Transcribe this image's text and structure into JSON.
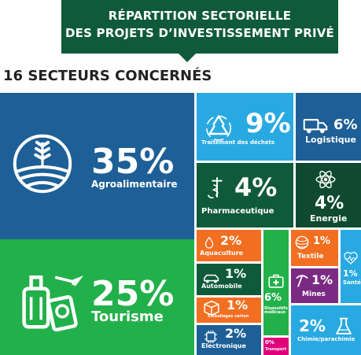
{
  "header": {
    "title_line1": "RÉPARTITION SECTORIELLE",
    "title_line2": "DES PROJETS D’INVESTISSEMENT PRIVÉ",
    "subtitle": "16 SECTEURS CONCERNÉS"
  },
  "chart_data": {
    "type": "treemap",
    "title": "RÉPARTITION SECTORIELLE DES PROJETS D’INVESTISSEMENT PRIVÉ",
    "subtitle": "16 SECTEURS CONCERNÉS",
    "unit": "%",
    "sectors": [
      {
        "key": "agro",
        "name": "Agroalimentaire",
        "label": "35%",
        "value": 35,
        "color": "#1d5f96",
        "icon": "wheat-field-icon"
      },
      {
        "key": "tourisme",
        "name": "Tourisme",
        "label": "25%",
        "value": 25,
        "color": "#22b04a",
        "icon": "luggage-passport-icon"
      },
      {
        "key": "dechets",
        "name": "Traitement des déchets",
        "label": "9%",
        "value": 9,
        "color": "#29a9e1",
        "icon": "recycle-icon"
      },
      {
        "key": "logistique",
        "name": "Logistique",
        "label": "6%",
        "value": 6,
        "color": "#1d5f96",
        "icon": "delivery-truck-icon"
      },
      {
        "key": "pharma",
        "name": "Pharmaceutique",
        "label": "4%",
        "value": 4,
        "color": "#0f5a3a",
        "icon": "pharmacy-icon"
      },
      {
        "key": "energie",
        "name": "Energie",
        "label": "4%",
        "value": 4,
        "color": "#0f4a30",
        "icon": "atom-icon"
      },
      {
        "key": "aquaculture",
        "name": "Aquaculture",
        "label": "2%",
        "value": 2,
        "color": "#f26f21",
        "icon": "droplet-icon"
      },
      {
        "key": "automobile",
        "name": "Automobile",
        "label": "1%",
        "value": 1,
        "color": "#0f5a3a",
        "icon": "car-icon"
      },
      {
        "key": "emballages",
        "name": "Emballages carton",
        "label": "1%",
        "value": 1,
        "color": "#f26f21",
        "icon": "carton-box-icon"
      },
      {
        "key": "electronique",
        "name": "Electronique",
        "label": "2%",
        "value": 2,
        "color": "#1d5f96",
        "icon": "chip-icon"
      },
      {
        "key": "dispositifs",
        "name": "Dispositifs médicaux",
        "label": "6%",
        "value": 6,
        "color": "#22b04a",
        "icon": "medical-kit-icon"
      },
      {
        "key": "transport",
        "name": "Transport",
        "label": "0%",
        "value": 0,
        "color": "#e0007a",
        "icon": ""
      },
      {
        "key": "textile",
        "name": "Textile",
        "label": "1%",
        "value": 1,
        "color": "#f26f21",
        "icon": "yarn-icon"
      },
      {
        "key": "mines",
        "name": "Mines",
        "label": "1%",
        "value": 1,
        "color": "#7a2a82",
        "icon": "pickaxe-icon"
      },
      {
        "key": "sante",
        "name": "Santé",
        "label": "1%",
        "value": 1,
        "color": "#29a9e1",
        "icon": "heartbeat-icon"
      },
      {
        "key": "chimie",
        "name": "Chimie/parachimie",
        "label": "2%",
        "value": 2,
        "color": "#29a9e1",
        "icon": "flask-icon"
      }
    ]
  }
}
